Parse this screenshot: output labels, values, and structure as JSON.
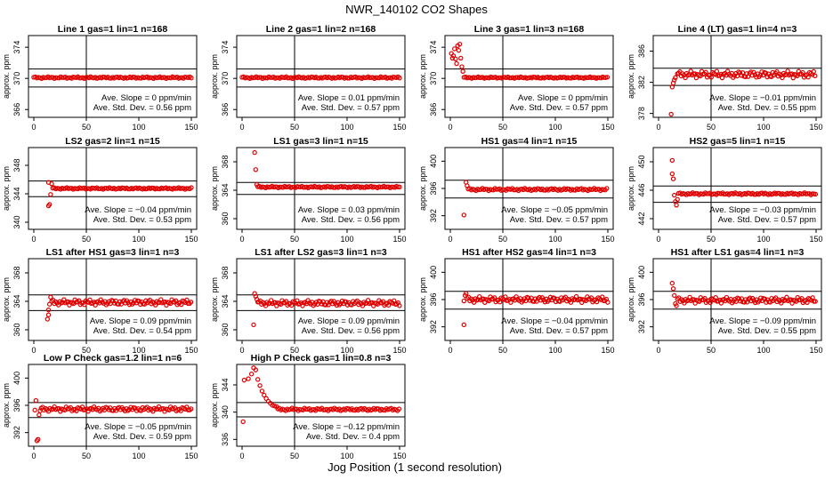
{
  "figure": {
    "title": "NWR_140102  CO2 Shapes",
    "xlabel": "Jog Position (1 second resolution)"
  },
  "chart_data": [
    {
      "type": "scatter",
      "title": "Line 1 gas=1 lin=1 n=168",
      "ylabel": "approx. ppm",
      "xlim": [
        0,
        150
      ],
      "xticks": [
        0,
        50,
        100,
        150
      ],
      "ylim": [
        365,
        375.5
      ],
      "yticks": [
        366,
        370,
        374
      ],
      "hlines": [
        371.2,
        368.9
      ],
      "vline_x": 50,
      "points_color": "#e00000",
      "series": [
        {
          "segments": [
            {
              "x0": 0,
              "x1": 150,
              "step": 1.5,
              "base": 370.1,
              "amp": 0.12
            }
          ]
        }
      ],
      "annotation": [
        "Ave. Slope = 0  ppm/min",
        "Ave. Std. Dev. = 0.56  ppm"
      ]
    },
    {
      "type": "scatter",
      "title": "Line 2 gas=1 lin=2 n=168",
      "ylabel": "approx. ppm",
      "xlim": [
        0,
        150
      ],
      "xticks": [
        0,
        50,
        100,
        150
      ],
      "ylim": [
        365,
        375.5
      ],
      "yticks": [
        366,
        370,
        374
      ],
      "hlines": [
        371.2,
        368.9
      ],
      "vline_x": 50,
      "points_color": "#e00000",
      "series": [
        {
          "segments": [
            {
              "x0": 0,
              "x1": 150,
              "step": 1.5,
              "base": 370.1,
              "amp": 0.12
            }
          ]
        }
      ],
      "annotation": [
        "Ave. Slope = 0.01  ppm/min",
        "Ave. Std. Dev. = 0.57  ppm"
      ]
    },
    {
      "type": "scatter",
      "title": "Line 3 gas=1 lin=3 n=168",
      "ylabel": "approx. ppm",
      "xlim": [
        0,
        150
      ],
      "xticks": [
        0,
        50,
        100,
        150
      ],
      "ylim": [
        365,
        375.5
      ],
      "yticks": [
        366,
        370,
        374
      ],
      "hlines": [
        371.2,
        368.9
      ],
      "vline_x": 50,
      "points_color": "#e00000",
      "series": [
        {
          "points": [
            [
              1,
              373.2
            ],
            [
              2,
              372.6
            ],
            [
              3,
              372.9
            ],
            [
              4,
              373.8
            ],
            [
              5,
              372.5
            ],
            [
              6,
              371.9
            ],
            [
              7,
              374.2
            ],
            [
              8,
              373.6
            ],
            [
              9,
              374.4
            ],
            [
              10,
              372.6
            ],
            [
              11,
              371.5
            ],
            [
              12,
              370.9
            ]
          ],
          "segments": [
            {
              "x0": 13,
              "x1": 150,
              "step": 1.5,
              "base": 370.1,
              "amp": 0.1
            }
          ]
        }
      ],
      "annotation": [
        "Ave. Slope = 0  ppm/min",
        "Ave. Std. Dev. = 0.57  ppm"
      ]
    },
    {
      "type": "scatter",
      "title": "Line 4 (LT) gas=1 lin=4 n=3",
      "ylabel": "approx. ppm",
      "xlim": [
        0,
        150
      ],
      "xticks": [
        0,
        50,
        100,
        150
      ],
      "ylim": [
        377.5,
        388
      ],
      "yticks": [
        378,
        382,
        386
      ],
      "hlines": [
        383.8,
        381.6
      ],
      "vline_x": 50,
      "points_color": "#e00000",
      "series": [
        {
          "points": [
            [
              12,
              377.9
            ],
            [
              13,
              381.4
            ],
            [
              14,
              381.9
            ],
            [
              15,
              382.3
            ],
            [
              16,
              382.6
            ],
            [
              18,
              383.1
            ]
          ],
          "segments": [
            {
              "x0": 19,
              "x1": 150,
              "step": 1.3,
              "base": 383.0,
              "amp": 0.45
            }
          ]
        }
      ],
      "annotation": [
        "Ave. Slope = −0.01  ppm/min",
        "Ave. Std. Dev. = 0.55  ppm"
      ]
    },
    {
      "type": "scatter",
      "title": "LS2 gas=2 lin=1 n=15",
      "ylabel": "approx. ppm",
      "xlim": [
        0,
        150
      ],
      "xticks": [
        0,
        50,
        100,
        150
      ],
      "ylim": [
        339,
        350.5
      ],
      "yticks": [
        340,
        344,
        348
      ],
      "hlines": [
        345.8,
        343.6
      ],
      "vline_x": 50,
      "points_color": "#e00000",
      "series": [
        {
          "points": [
            [
              14,
              342.3
            ],
            [
              15,
              342.5
            ],
            [
              16,
              343.9
            ],
            [
              14,
              345.6
            ],
            [
              17,
              345.4
            ]
          ],
          "segments": [
            {
              "x0": 18,
              "x1": 150,
              "step": 1.5,
              "base": 344.75,
              "amp": 0.12
            }
          ]
        }
      ],
      "annotation": [
        "Ave. Slope = −0.04  ppm/min",
        "Ave. Std. Dev. = 0.53  ppm"
      ]
    },
    {
      "type": "scatter",
      "title": "LS1 gas=3 lin=1 n=15",
      "ylabel": "approx. ppm",
      "xlim": [
        0,
        150
      ],
      "xticks": [
        0,
        50,
        100,
        150
      ],
      "ylim": [
        358.5,
        370
      ],
      "yticks": [
        360,
        364,
        368
      ],
      "hlines": [
        365.1,
        363.4
      ],
      "vline_x": 50,
      "points_color": "#e00000",
      "series": [
        {
          "points": [
            [
              12,
              369.3
            ],
            [
              13,
              366.9
            ],
            [
              14,
              364.8
            ]
          ],
          "segments": [
            {
              "x0": 15,
              "x1": 150,
              "step": 1.5,
              "base": 364.45,
              "amp": 0.12
            }
          ]
        }
      ],
      "annotation": [
        "Ave. Slope = 0.03  ppm/min",
        "Ave. Std. Dev. = 0.56  ppm"
      ]
    },
    {
      "type": "scatter",
      "title": "HS1 gas=4 lin=1 n=15",
      "ylabel": "approx. ppm",
      "xlim": [
        0,
        150
      ],
      "xticks": [
        0,
        50,
        100,
        150
      ],
      "ylim": [
        390,
        402
      ],
      "yticks": [
        392,
        396,
        400
      ],
      "hlines": [
        397.2,
        394.6
      ],
      "vline_x": 50,
      "points_color": "#e00000",
      "series": [
        {
          "points": [
            [
              13,
              392.1
            ],
            [
              15,
              396.9
            ],
            [
              16,
              396.4
            ]
          ],
          "segments": [
            {
              "x0": 17,
              "x1": 150,
              "step": 1.5,
              "base": 395.85,
              "amp": 0.18
            }
          ]
        }
      ],
      "annotation": [
        "Ave. Slope = −0.05  ppm/min",
        "Ave. Std. Dev. = 0.57  ppm"
      ]
    },
    {
      "type": "scatter",
      "title": "HS2 gas=5 lin=1 n=15",
      "ylabel": "approx. ppm",
      "xlim": [
        0,
        150
      ],
      "xticks": [
        0,
        50,
        100,
        150
      ],
      "ylim": [
        440.5,
        452
      ],
      "yticks": [
        442,
        446,
        450
      ],
      "hlines": [
        446.6,
        444.3
      ],
      "vline_x": 50,
      "points_color": "#e00000",
      "series": [
        {
          "points": [
            [
              13,
              450.2
            ],
            [
              13,
              448.3
            ],
            [
              14,
              447.6
            ],
            [
              15,
              445.3
            ],
            [
              16,
              444.4
            ],
            [
              17,
              443.9
            ],
            [
              18,
              444.7
            ]
          ],
          "segments": [
            {
              "x0": 19,
              "x1": 150,
              "step": 1.5,
              "base": 445.5,
              "amp": 0.15
            }
          ]
        }
      ],
      "annotation": [
        "Ave. Slope = −0.03  ppm/min",
        "Ave. Std. Dev. = 0.57  ppm"
      ]
    },
    {
      "type": "scatter",
      "title": "LS1 after HS1 gas=3 lin=1 n=3",
      "ylabel": "approx. ppm",
      "xlim": [
        0,
        150
      ],
      "xticks": [
        0,
        50,
        100,
        150
      ],
      "ylim": [
        358.5,
        370
      ],
      "yticks": [
        360,
        364,
        368
      ],
      "hlines": [
        364.9,
        362.7
      ],
      "vline_x": 50,
      "points_color": "#e00000",
      "series": [
        {
          "points": [
            [
              13,
              361.5
            ],
            [
              14,
              362.1
            ],
            [
              14,
              362.8
            ],
            [
              15,
              363.6
            ],
            [
              16,
              364.6
            ]
          ],
          "segments": [
            {
              "x0": 17,
              "x1": 150,
              "step": 1.3,
              "base": 363.85,
              "amp": 0.4
            }
          ]
        }
      ],
      "annotation": [
        "Ave. Slope = 0.09  ppm/min",
        "Ave. Std. Dev. = 0.54  ppm"
      ]
    },
    {
      "type": "scatter",
      "title": "LS1 after LS2 gas=3 lin=1 n=3",
      "ylabel": "approx. ppm",
      "xlim": [
        0,
        150
      ],
      "xticks": [
        0,
        50,
        100,
        150
      ],
      "ylim": [
        358.5,
        370
      ],
      "yticks": [
        360,
        364,
        368
      ],
      "hlines": [
        364.9,
        362.7
      ],
      "vline_x": 50,
      "points_color": "#e00000",
      "series": [
        {
          "points": [
            [
              11,
              360.7
            ],
            [
              12,
              365.1
            ],
            [
              13,
              364.7
            ],
            [
              14,
              364.3
            ],
            [
              15,
              363.9
            ]
          ],
          "segments": [
            {
              "x0": 16,
              "x1": 150,
              "step": 1.3,
              "base": 363.75,
              "amp": 0.4
            }
          ]
        }
      ],
      "annotation": [
        "Ave. Slope = 0.09  ppm/min",
        "Ave. Std. Dev. = 0.56  ppm"
      ]
    },
    {
      "type": "scatter",
      "title": "HS1 after HS2 gas=4 lin=1 n=3",
      "ylabel": "approx. ppm",
      "xlim": [
        0,
        150
      ],
      "xticks": [
        0,
        50,
        100,
        150
      ],
      "ylim": [
        390,
        402
      ],
      "yticks": [
        392,
        396,
        400
      ],
      "hlines": [
        397.2,
        394.6
      ],
      "vline_x": 50,
      "points_color": "#e00000",
      "series": [
        {
          "points": [
            [
              13,
              392.3
            ],
            [
              13,
              395.8
            ],
            [
              14,
              396.6
            ],
            [
              15,
              396.9
            ]
          ],
          "segments": [
            {
              "x0": 16,
              "x1": 150,
              "step": 1.3,
              "base": 396.0,
              "amp": 0.45
            }
          ]
        }
      ],
      "annotation": [
        "Ave. Slope = −0.04  ppm/min",
        "Ave. Std. Dev. = 0.57  ppm"
      ]
    },
    {
      "type": "scatter",
      "title": "HS1 after LS1 gas=4 lin=1 n=3",
      "ylabel": "approx. ppm",
      "xlim": [
        0,
        150
      ],
      "xticks": [
        0,
        50,
        100,
        150
      ],
      "ylim": [
        390,
        402
      ],
      "yticks": [
        392,
        396,
        400
      ],
      "hlines": [
        397.2,
        394.6
      ],
      "vline_x": 50,
      "points_color": "#e00000",
      "series": [
        {
          "points": [
            [
              13,
              398.4
            ],
            [
              14,
              397.6
            ],
            [
              15,
              396.6
            ],
            [
              16,
              395.4
            ],
            [
              17,
              395.1
            ]
          ],
          "segments": [
            {
              "x0": 18,
              "x1": 150,
              "step": 1.3,
              "base": 395.9,
              "amp": 0.45
            }
          ]
        }
      ],
      "annotation": [
        "Ave. Slope = −0.09  ppm/min",
        "Ave. Std. Dev. = 0.55  ppm"
      ]
    },
    {
      "type": "scatter",
      "title": "Low P Check gas=1.2 lin=1 n=6",
      "ylabel": "approx. ppm",
      "xlim": [
        0,
        150
      ],
      "xticks": [
        0,
        50,
        100,
        150
      ],
      "ylim": [
        390,
        402
      ],
      "yticks": [
        392,
        396,
        400
      ],
      "hlines": [
        396.4,
        394.2
      ],
      "vline_x": 50,
      "points_color": "#e00000",
      "series": [
        {
          "points": [
            [
              1,
              395.3
            ],
            [
              2,
              396.7
            ],
            [
              3,
              390.8
            ],
            [
              4,
              391.0
            ],
            [
              5,
              394.6
            ],
            [
              6,
              395.2
            ]
          ],
          "segments": [
            {
              "x0": 7,
              "x1": 150,
              "step": 1.4,
              "base": 395.45,
              "amp": 0.35
            }
          ]
        }
      ],
      "annotation": [
        "Ave. Slope = −0.05  ppm/min",
        "Ave. Std. Dev. = 0.59  ppm"
      ]
    },
    {
      "type": "scatter",
      "title": "High P Check gas=1 lin=0.8 n=3",
      "ylabel": "approx. ppm",
      "xlim": [
        0,
        150
      ],
      "xticks": [
        0,
        50,
        100,
        150
      ],
      "ylim": [
        335,
        347
      ],
      "yticks": [
        336,
        340,
        344
      ],
      "hlines": [
        341.4,
        339.3
      ],
      "vline_x": 50,
      "points_color": "#e00000",
      "series": [
        {
          "points": [
            [
              1,
              338.6
            ],
            [
              2,
              344.7
            ],
            [
              6,
              344.9
            ],
            [
              9,
              345.6
            ],
            [
              11,
              346.5
            ],
            [
              13,
              346.2
            ],
            [
              15,
              344.8
            ],
            [
              17,
              343.9
            ],
            [
              19,
              343.1
            ],
            [
              21,
              342.5
            ],
            [
              23,
              342.0
            ],
            [
              25,
              341.6
            ],
            [
              27,
              341.3
            ],
            [
              29,
              341.0
            ],
            [
              31,
              340.9
            ],
            [
              33,
              340.8
            ]
          ],
          "segments": [
            {
              "x0": 34,
              "x1": 150,
              "step": 1.5,
              "base": 340.4,
              "amp": 0.2
            }
          ]
        }
      ],
      "annotation": [
        "Ave. Slope = −0.12  ppm/min",
        "Ave. Std. Dev. = 0.4  ppm"
      ]
    }
  ]
}
